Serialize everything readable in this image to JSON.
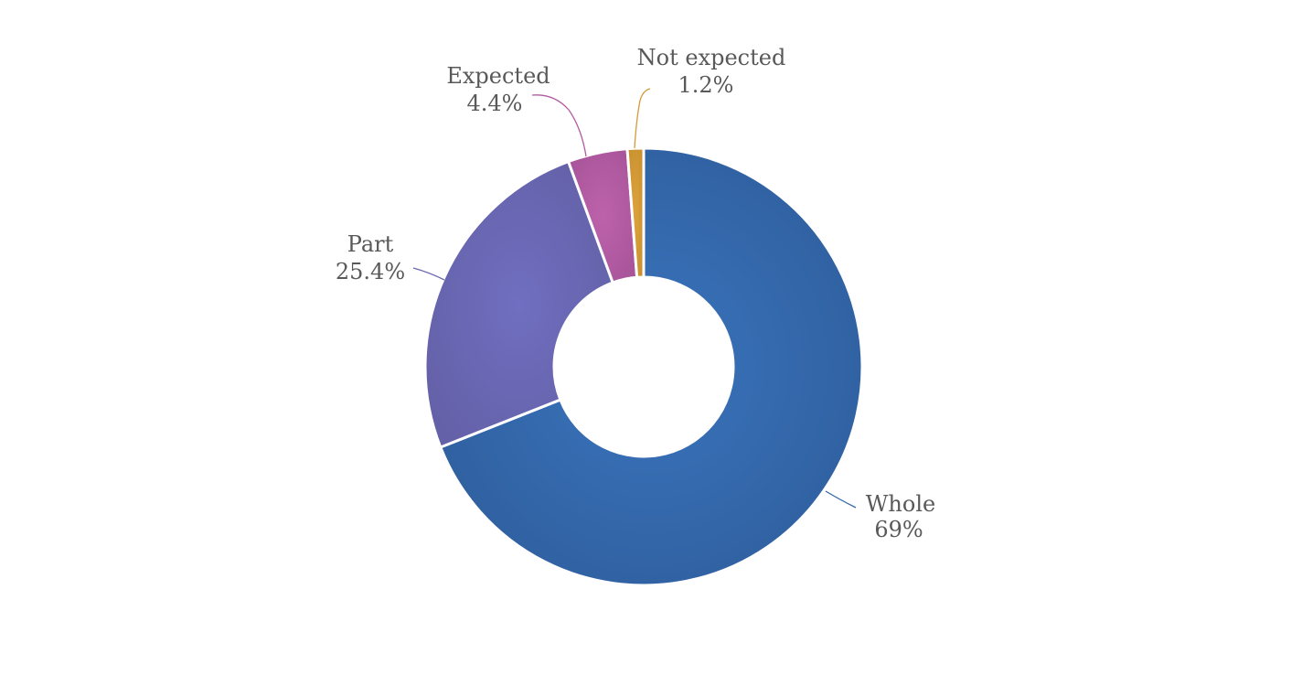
{
  "chart_data": {
    "type": "pie",
    "donut": true,
    "categories": [
      "Whole",
      "Part",
      "Expected",
      "Not expected"
    ],
    "values": [
      69,
      25.4,
      4.4,
      1.2
    ],
    "value_labels": [
      "69%",
      "25.4%",
      "4.4%",
      "1.2%"
    ],
    "colors": [
      "#3466a8",
      "#6a67b1",
      "#b35ba2",
      "#d39a36"
    ],
    "legend": "none",
    "data_labels": "outside-with-leader-lines"
  }
}
